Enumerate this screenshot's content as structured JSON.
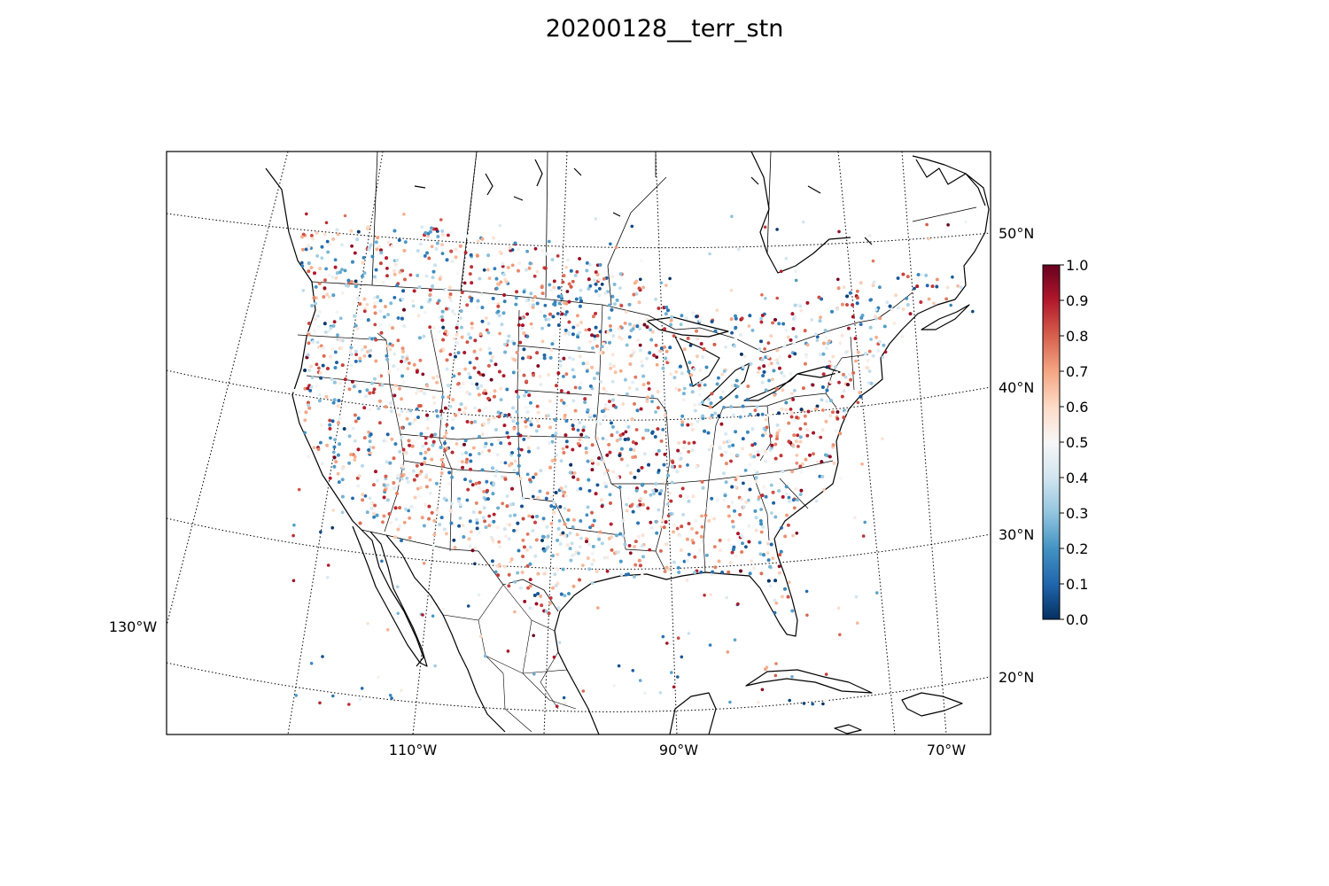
{
  "figure": {
    "title": "20200128__terr_stn"
  },
  "map": {
    "projection": "lambert-conformal",
    "region": "contiguous United States with southern Canada, northern Mexico and the Caribbean",
    "lon_labels": [
      "130°W",
      "110°W",
      "90°W",
      "70°W"
    ],
    "lat_labels": [
      "50°N",
      "40°N",
      "30°N",
      "20°N"
    ],
    "meridians": [
      -130,
      -110,
      -90,
      -70
    ],
    "parallels": [
      20,
      30,
      40,
      50
    ],
    "coastline_color": "#000000",
    "graticule_style": "dotted"
  },
  "colorbar": {
    "colormap": "RdBu_r",
    "min": 0.0,
    "max": 1.0,
    "ticks": [
      "0.0",
      "0.1",
      "0.2",
      "0.3",
      "0.4",
      "0.5",
      "0.6",
      "0.7",
      "0.8",
      "0.9",
      "1.0"
    ],
    "stops": [
      "#053061",
      "#2166ac",
      "#4393c3",
      "#92c5de",
      "#d1e5f0",
      "#f7f7f7",
      "#fddbc7",
      "#f4a582",
      "#d6604d",
      "#b2182b",
      "#67001f"
    ]
  },
  "stations": {
    "value_range": [
      0.0,
      1.0
    ],
    "marker": "dot"
  }
}
